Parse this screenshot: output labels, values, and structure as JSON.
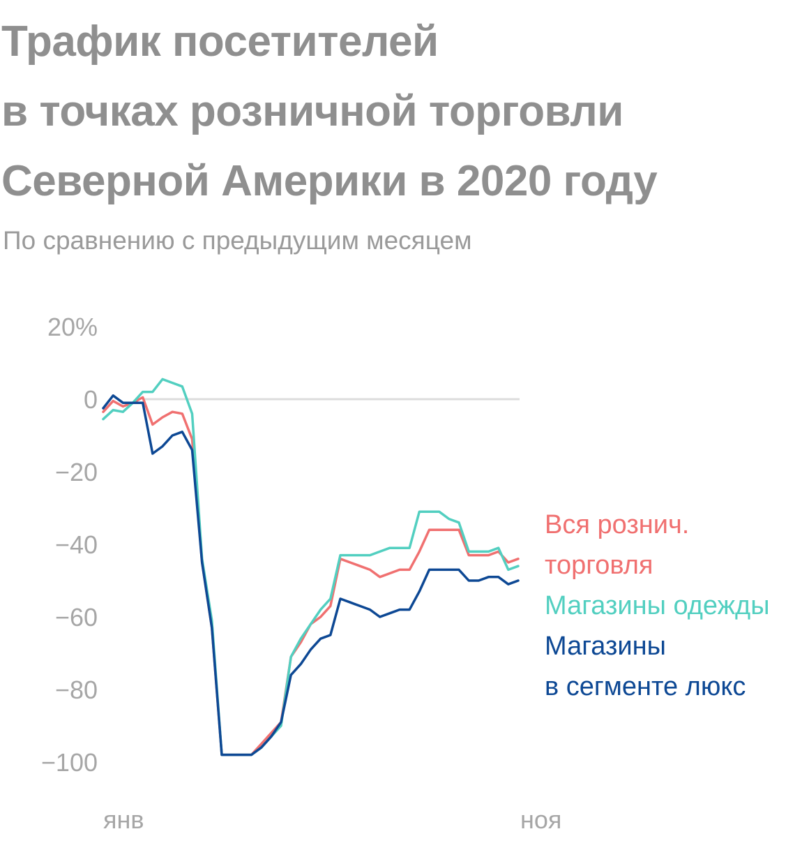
{
  "chart_data": {
    "type": "line",
    "title_lines": [
      "Трафик посетителей",
      "в точках розничной торговли",
      "Северной Америки в 2020 году"
    ],
    "subtitle": "По сравнению с предыдущим месяцем",
    "xlabel": "",
    "ylabel": "",
    "ylim": [
      -100,
      20
    ],
    "yticks": [
      {
        "value": 20,
        "label": "20%"
      },
      {
        "value": 0,
        "label": "0"
      },
      {
        "value": -20,
        "label": "−20"
      },
      {
        "value": -40,
        "label": "−40"
      },
      {
        "value": -60,
        "label": "−60"
      },
      {
        "value": -80,
        "label": "−80"
      },
      {
        "value": -100,
        "label": "−100"
      }
    ],
    "xtick_labels": [
      "янв",
      "ноя"
    ],
    "grid": "zero-line only",
    "legend_placement": "right",
    "series": [
      {
        "name_lines": [
          "Вся рознич.",
          "торговля"
        ],
        "color": "#f07070",
        "values": [
          -3.5,
          -0.5,
          -2,
          -1,
          0.5,
          -7,
          -5,
          -3.5,
          -4,
          -11,
          -45,
          -63,
          -98,
          -98,
          -98,
          -98,
          -95,
          -92,
          -89,
          -71,
          -67,
          -62,
          -60,
          -57,
          -44,
          -45,
          -46,
          -47,
          -49,
          -48,
          -47,
          -47,
          -42,
          -36,
          -36,
          -36,
          -36,
          -43,
          -43,
          -43,
          -42,
          -45,
          -44
        ]
      },
      {
        "name_lines": [
          "Магазины одежды"
        ],
        "color": "#52cfc0",
        "values": [
          -5.5,
          -3,
          -3.5,
          -1,
          2,
          2,
          5.5,
          4.5,
          3.5,
          -4,
          -44,
          -61,
          -98,
          -98,
          -98,
          -98,
          -96,
          -93,
          -90,
          -71,
          -66,
          -62,
          -58,
          -55,
          -43,
          -43,
          -43,
          -43,
          -42,
          -41,
          -41,
          -41,
          -31,
          -31,
          -31,
          -33,
          -34,
          -42,
          -42,
          -42,
          -41,
          -47,
          -46
        ]
      },
      {
        "name_lines": [
          "Магазины",
          "в сегменте люкс"
        ],
        "color": "#0d4894",
        "values": [
          -2.5,
          1,
          -1,
          -1,
          -1,
          -15,
          -13,
          -10,
          -9,
          -14,
          -45,
          -63,
          -98,
          -98,
          -98,
          -98,
          -96,
          -93,
          -89,
          -76,
          -73,
          -69,
          -66,
          -65,
          -55,
          -56,
          -57,
          -58,
          -60,
          -59,
          -58,
          -58,
          -53,
          -47,
          -47,
          -47,
          -47,
          -50,
          -50,
          -49,
          -49,
          -51,
          -50
        ]
      }
    ]
  }
}
